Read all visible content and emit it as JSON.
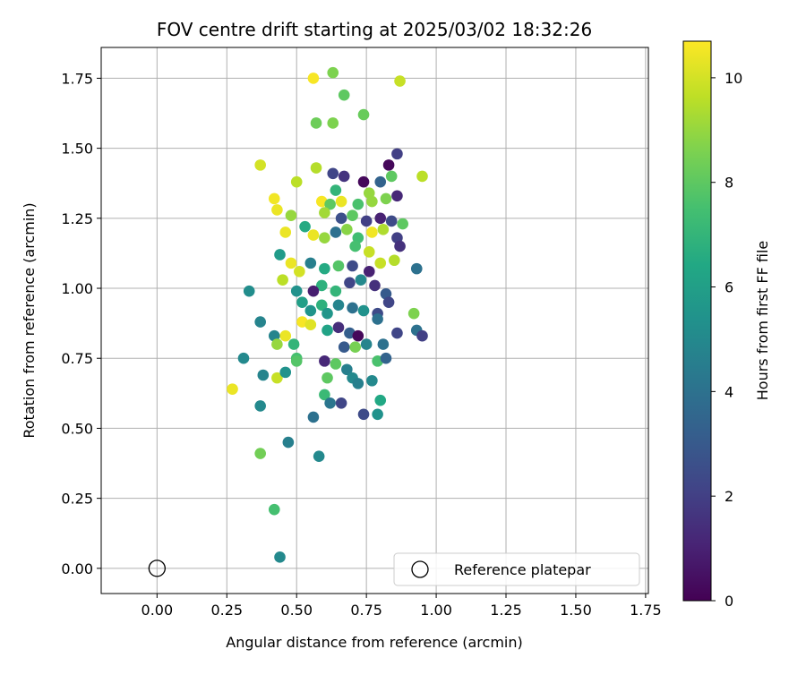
{
  "chart_data": {
    "type": "scatter",
    "title": "FOV centre drift starting at 2025/03/02 18:32:26",
    "xlabel": "Angular distance from reference (arcmin)",
    "ylabel": "Rotation from reference (arcmin)",
    "xlim": [
      -0.2,
      1.76
    ],
    "ylim": [
      -0.09,
      1.86
    ],
    "xticks": [
      0.0,
      0.25,
      0.5,
      0.75,
      1.0,
      1.25,
      1.5,
      1.75
    ],
    "xtick_labels": [
      "0.00",
      "0.25",
      "0.50",
      "0.75",
      "1.00",
      "1.25",
      "1.50",
      "1.75"
    ],
    "yticks": [
      0.0,
      0.25,
      0.5,
      0.75,
      1.0,
      1.25,
      1.5,
      1.75
    ],
    "ytick_labels": [
      "0.00",
      "0.25",
      "0.50",
      "0.75",
      "1.00",
      "1.25",
      "1.50",
      "1.75"
    ],
    "grid": true,
    "legend": {
      "placement": "lower-right",
      "entries": [
        "Reference platepar"
      ]
    },
    "reference_point": {
      "label": "Reference platepar",
      "x": 0.0,
      "y": 0.0,
      "marker": "hollow-circle"
    },
    "colorbar": {
      "label": "Hours from first FF file",
      "colormap": "viridis",
      "range": [
        0,
        10.7
      ],
      "ticks": [
        0,
        2,
        4,
        6,
        8,
        10
      ],
      "tick_labels": [
        "0",
        "2",
        "4",
        "6",
        "8",
        "10"
      ]
    },
    "points": [
      [
        0.63,
        1.77,
        8.6
      ],
      [
        0.56,
        1.75,
        10.6
      ],
      [
        0.67,
        1.69,
        8.0
      ],
      [
        0.87,
        1.74,
        9.8
      ],
      [
        0.74,
        1.62,
        8.2
      ],
      [
        0.57,
        1.59,
        8.3
      ],
      [
        0.63,
        1.59,
        8.6
      ],
      [
        0.86,
        1.48,
        2.0
      ],
      [
        0.37,
        1.44,
        10.0
      ],
      [
        0.57,
        1.43,
        9.5
      ],
      [
        0.83,
        1.44,
        0.2
      ],
      [
        0.95,
        1.4,
        9.6
      ],
      [
        0.63,
        1.41,
        2.2
      ],
      [
        0.67,
        1.4,
        1.6
      ],
      [
        0.74,
        1.38,
        0.2
      ],
      [
        0.8,
        1.38,
        3.4
      ],
      [
        0.84,
        1.4,
        8.0
      ],
      [
        0.5,
        1.38,
        9.6
      ],
      [
        0.64,
        1.35,
        7.0
      ],
      [
        0.76,
        1.34,
        9.0
      ],
      [
        0.86,
        1.33,
        1.2
      ],
      [
        0.42,
        1.32,
        10.5
      ],
      [
        0.59,
        1.31,
        10.6
      ],
      [
        0.62,
        1.3,
        8.0
      ],
      [
        0.66,
        1.31,
        10.4
      ],
      [
        0.72,
        1.3,
        7.6
      ],
      [
        0.77,
        1.31,
        9.0
      ],
      [
        0.82,
        1.32,
        8.6
      ],
      [
        0.43,
        1.28,
        10.4
      ],
      [
        0.48,
        1.26,
        9.0
      ],
      [
        0.6,
        1.27,
        9.2
      ],
      [
        0.66,
        1.25,
        2.6
      ],
      [
        0.7,
        1.26,
        8.0
      ],
      [
        0.75,
        1.24,
        2.0
      ],
      [
        0.8,
        1.25,
        1.0
      ],
      [
        0.84,
        1.24,
        2.4
      ],
      [
        0.88,
        1.23,
        8.0
      ],
      [
        0.53,
        1.22,
        6.5
      ],
      [
        0.64,
        1.2,
        4.0
      ],
      [
        0.68,
        1.21,
        8.8
      ],
      [
        0.72,
        1.18,
        7.4
      ],
      [
        0.77,
        1.2,
        10.5
      ],
      [
        0.81,
        1.21,
        9.4
      ],
      [
        0.86,
        1.18,
        2.0
      ],
      [
        0.46,
        1.2,
        10.4
      ],
      [
        0.56,
        1.19,
        10.4
      ],
      [
        0.6,
        1.18,
        9.0
      ],
      [
        0.71,
        1.15,
        7.5
      ],
      [
        0.76,
        1.13,
        9.8
      ],
      [
        0.87,
        1.15,
        1.5
      ],
      [
        0.44,
        1.12,
        5.8
      ],
      [
        0.55,
        1.09,
        4.6
      ],
      [
        0.6,
        1.07,
        6.5
      ],
      [
        0.65,
        1.08,
        7.8
      ],
      [
        0.7,
        1.08,
        2.4
      ],
      [
        0.76,
        1.06,
        1.0
      ],
      [
        0.8,
        1.09,
        9.8
      ],
      [
        0.85,
        1.1,
        9.5
      ],
      [
        0.93,
        1.07,
        4.0
      ],
      [
        0.48,
        1.09,
        10.4
      ],
      [
        0.51,
        1.06,
        10.0
      ],
      [
        0.45,
        1.03,
        9.6
      ],
      [
        0.59,
        1.01,
        6.8
      ],
      [
        0.64,
        0.99,
        7.0
      ],
      [
        0.69,
        1.02,
        2.2
      ],
      [
        0.73,
        1.03,
        5.0
      ],
      [
        0.78,
        1.01,
        1.5
      ],
      [
        0.82,
        0.98,
        3.0
      ],
      [
        0.33,
        0.99,
        5.2
      ],
      [
        0.5,
        0.99,
        5.4
      ],
      [
        0.56,
        0.99,
        0.9
      ],
      [
        0.52,
        0.95,
        6.0
      ],
      [
        0.55,
        0.92,
        5.5
      ],
      [
        0.59,
        0.94,
        6.8
      ],
      [
        0.61,
        0.91,
        5.6
      ],
      [
        0.65,
        0.94,
        4.8
      ],
      [
        0.7,
        0.93,
        4.0
      ],
      [
        0.74,
        0.92,
        5.4
      ],
      [
        0.79,
        0.91,
        2.4
      ],
      [
        0.83,
        0.95,
        2.2
      ],
      [
        0.37,
        0.88,
        4.8
      ],
      [
        0.52,
        0.88,
        10.6
      ],
      [
        0.55,
        0.87,
        10.2
      ],
      [
        0.61,
        0.85,
        6.2
      ],
      [
        0.65,
        0.86,
        1.4
      ],
      [
        0.69,
        0.84,
        3.2
      ],
      [
        0.72,
        0.83,
        0.2
      ],
      [
        0.79,
        0.89,
        4.0
      ],
      [
        0.86,
        0.84,
        2.2
      ],
      [
        0.93,
        0.85,
        4.0
      ],
      [
        0.95,
        0.83,
        2.0
      ],
      [
        0.92,
        0.91,
        8.6
      ],
      [
        0.42,
        0.83,
        4.8
      ],
      [
        0.46,
        0.83,
        10.4
      ],
      [
        0.49,
        0.8,
        7.0
      ],
      [
        0.43,
        0.8,
        9.0
      ],
      [
        0.5,
        0.75,
        7.5
      ],
      [
        0.67,
        0.79,
        3.0
      ],
      [
        0.71,
        0.79,
        8.5
      ],
      [
        0.75,
        0.8,
        4.8
      ],
      [
        0.81,
        0.8,
        4.0
      ],
      [
        0.31,
        0.75,
        5.0
      ],
      [
        0.38,
        0.69,
        4.8
      ],
      [
        0.43,
        0.68,
        9.8
      ],
      [
        0.46,
        0.7,
        5.4
      ],
      [
        0.5,
        0.74,
        7.8
      ],
      [
        0.6,
        0.74,
        1.2
      ],
      [
        0.64,
        0.73,
        8.0
      ],
      [
        0.68,
        0.71,
        4.6
      ],
      [
        0.7,
        0.68,
        5.0
      ],
      [
        0.72,
        0.66,
        4.6
      ],
      [
        0.77,
        0.67,
        5.0
      ],
      [
        0.79,
        0.74,
        7.6
      ],
      [
        0.82,
        0.75,
        3.4
      ],
      [
        0.27,
        0.64,
        10.4
      ],
      [
        0.37,
        0.58,
        5.0
      ],
      [
        0.6,
        0.62,
        7.2
      ],
      [
        0.61,
        0.68,
        8.0
      ],
      [
        0.62,
        0.59,
        4.2
      ],
      [
        0.66,
        0.59,
        2.2
      ],
      [
        0.74,
        0.55,
        2.4
      ],
      [
        0.79,
        0.55,
        5.4
      ],
      [
        0.8,
        0.6,
        6.4
      ],
      [
        0.56,
        0.54,
        4.0
      ],
      [
        0.37,
        0.41,
        8.4
      ],
      [
        0.47,
        0.45,
        4.6
      ],
      [
        0.58,
        0.4,
        5.0
      ],
      [
        0.42,
        0.21,
        7.5
      ],
      [
        0.44,
        0.04,
        5.0
      ]
    ]
  }
}
